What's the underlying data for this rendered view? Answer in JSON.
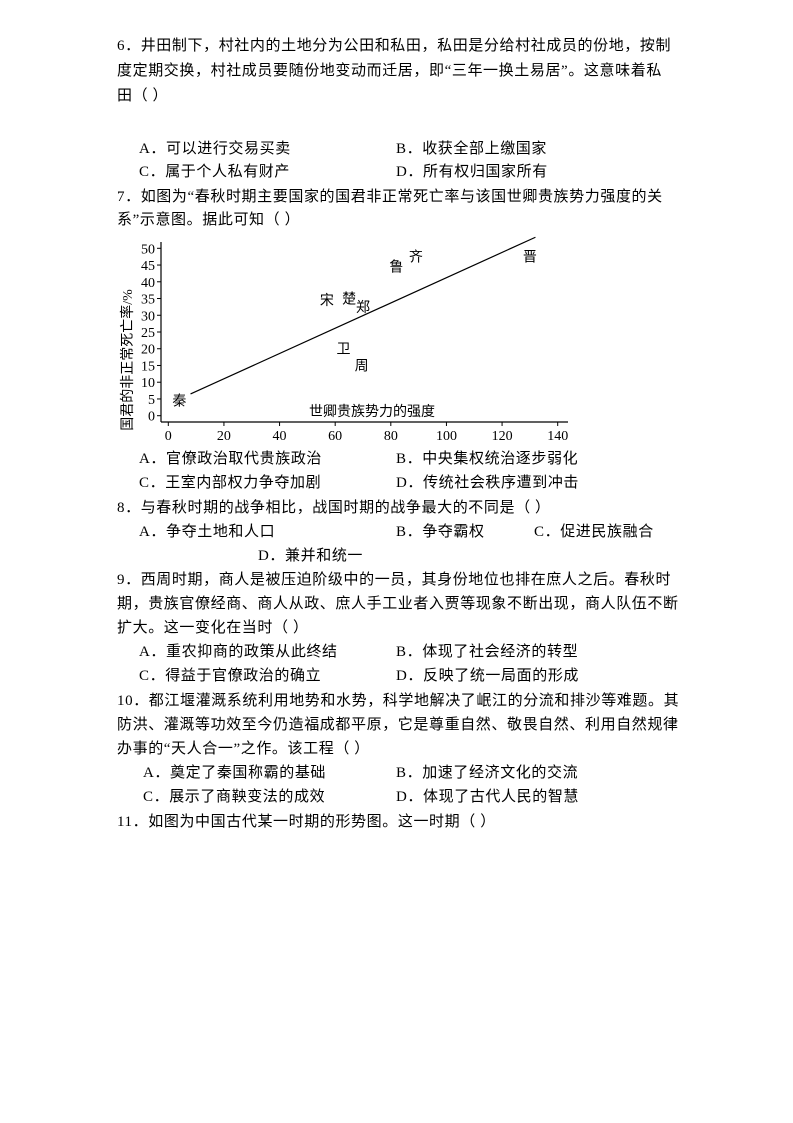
{
  "q6": {
    "lines": [
      "6．井田制下，村社内的土地分为公田和私田，私田是分给村社成员的份地，按制",
      "度定期交换，村社成员要随份地变动而迁居，即“三年一换土易居”。这意味着私",
      "田（    ）"
    ],
    "options": [
      "A．可以进行交易买卖",
      "B．收获全部上缴国家",
      "C．属于个人私有财产",
      "D．所有权归国家所有"
    ]
  },
  "q7": {
    "lines": [
      "7．如图为“春秋时期主要国家的国君非正常死亡率与该国世卿贵族势力强度的关",
      "系”示意图。据此可知（        ）"
    ],
    "options": [
      "A．官僚政治取代贵族政治",
      "B．中央集权统治逐步弱化",
      "C．王室内部权力争夺加剧",
      "D．传统社会秩序遭到冲击"
    ]
  },
  "chart_data": {
    "type": "scatter",
    "xlabel": "世卿贵族势力的强度",
    "ylabel": "国君的非正常死亡率/%",
    "xlim": [
      0,
      140
    ],
    "ylim": [
      0,
      50
    ],
    "xticks": [
      0,
      20,
      40,
      60,
      80,
      100,
      120,
      140
    ],
    "yticks": [
      0,
      5,
      10,
      15,
      20,
      25,
      30,
      35,
      40,
      45,
      50
    ],
    "points": [
      {
        "label": "秦",
        "x": 4,
        "y": 4.5
      },
      {
        "label": "宋",
        "x": 57,
        "y": 34.5
      },
      {
        "label": "楚",
        "x": 65,
        "y": 35
      },
      {
        "label": "郑",
        "x": 70,
        "y": 32.5
      },
      {
        "label": "鲁",
        "x": 82,
        "y": 44.5
      },
      {
        "label": "齐",
        "x": 89,
        "y": 47.5
      },
      {
        "label": "晋",
        "x": 130,
        "y": 47.5
      },
      {
        "label": "卫",
        "x": 63,
        "y": 20
      },
      {
        "label": "周",
        "x": 69.5,
        "y": 15
      }
    ],
    "trendline": [
      [
        8,
        6.5
      ],
      [
        132,
        53.3
      ]
    ],
    "grid": false
  },
  "q8": {
    "lines": [
      "8．与春秋时期的战争相比，战国时期的战争最大的不同是（        ）"
    ],
    "options": [
      "A．争夺土地和人口",
      "B．争夺霸权",
      "C．促进民族融合",
      "D．兼并和统一"
    ]
  },
  "q9": {
    "lines": [
      "9．西周时期，商人是被压迫阶级中的一员，其身份地位也排在庶人之后。春秋时",
      "期，贵族官僚经商、商人从政、庶人手工业者入贾等现象不断出现，商人队伍不断",
      "扩大。这一变化在当时（        ）"
    ],
    "options": [
      "A．重农抑商的政策从此终结",
      "B．体现了社会经济的转型",
      "C．得益于官僚政治的确立",
      "D．反映了统一局面的形成"
    ]
  },
  "q10": {
    "lines": [
      "10．都江堰灌溉系统利用地势和水势，科学地解决了岷江的分流和排沙等难题。其",
      "防洪、灌溉等功效至今仍造福成都平原，它是尊重自然、敬畏自然、利用自然规律",
      "办事的“天人合一”之作。该工程（        ）"
    ],
    "options": [
      "A．奠定了秦国称霸的基础",
      "B．加速了经济文化的交流",
      "C．展示了商鞅变法的成效",
      "D．体现了古代人民的智慧"
    ]
  },
  "q11": {
    "lines": [
      "11．如图为中国古代某一时期的形势图。这一时期（        ）"
    ]
  }
}
